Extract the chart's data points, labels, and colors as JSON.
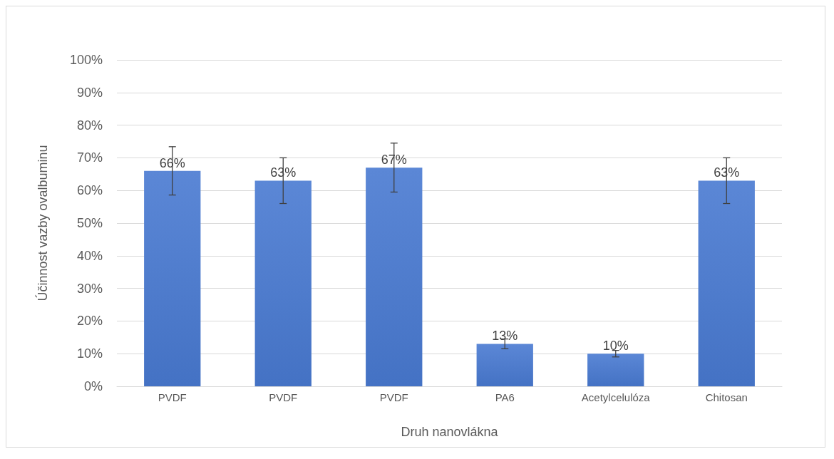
{
  "chart_data": {
    "type": "bar",
    "xlabel": "Druh nanovlákna",
    "ylabel": "Účinnost vazby ovalbuminu",
    "categories": [
      "PVDF",
      "PVDF",
      "PVDF",
      "PA6",
      "Acetylcelulóza",
      "Chitosan"
    ],
    "values": [
      66,
      63,
      67,
      13,
      10,
      63
    ],
    "errors": [
      7.4,
      7,
      7.5,
      1.5,
      1,
      7
    ],
    "value_labels": [
      "66%",
      "63%",
      "67%",
      "13%",
      "10%",
      "63%"
    ],
    "color": "#4472c4",
    "ylim": [
      0,
      100
    ],
    "yticks": [
      {
        "value": 0,
        "label": "0%"
      },
      {
        "value": 10,
        "label": "10%"
      },
      {
        "value": 20,
        "label": "20%"
      },
      {
        "value": 30,
        "label": "30%"
      },
      {
        "value": 40,
        "label": "40%"
      },
      {
        "value": 50,
        "label": "50%"
      },
      {
        "value": 60,
        "label": "60%"
      },
      {
        "value": 70,
        "label": "70%"
      },
      {
        "value": 80,
        "label": "80%"
      },
      {
        "value": 90,
        "label": "90%"
      },
      {
        "value": 100,
        "label": "100%"
      }
    ],
    "grid": "y"
  }
}
